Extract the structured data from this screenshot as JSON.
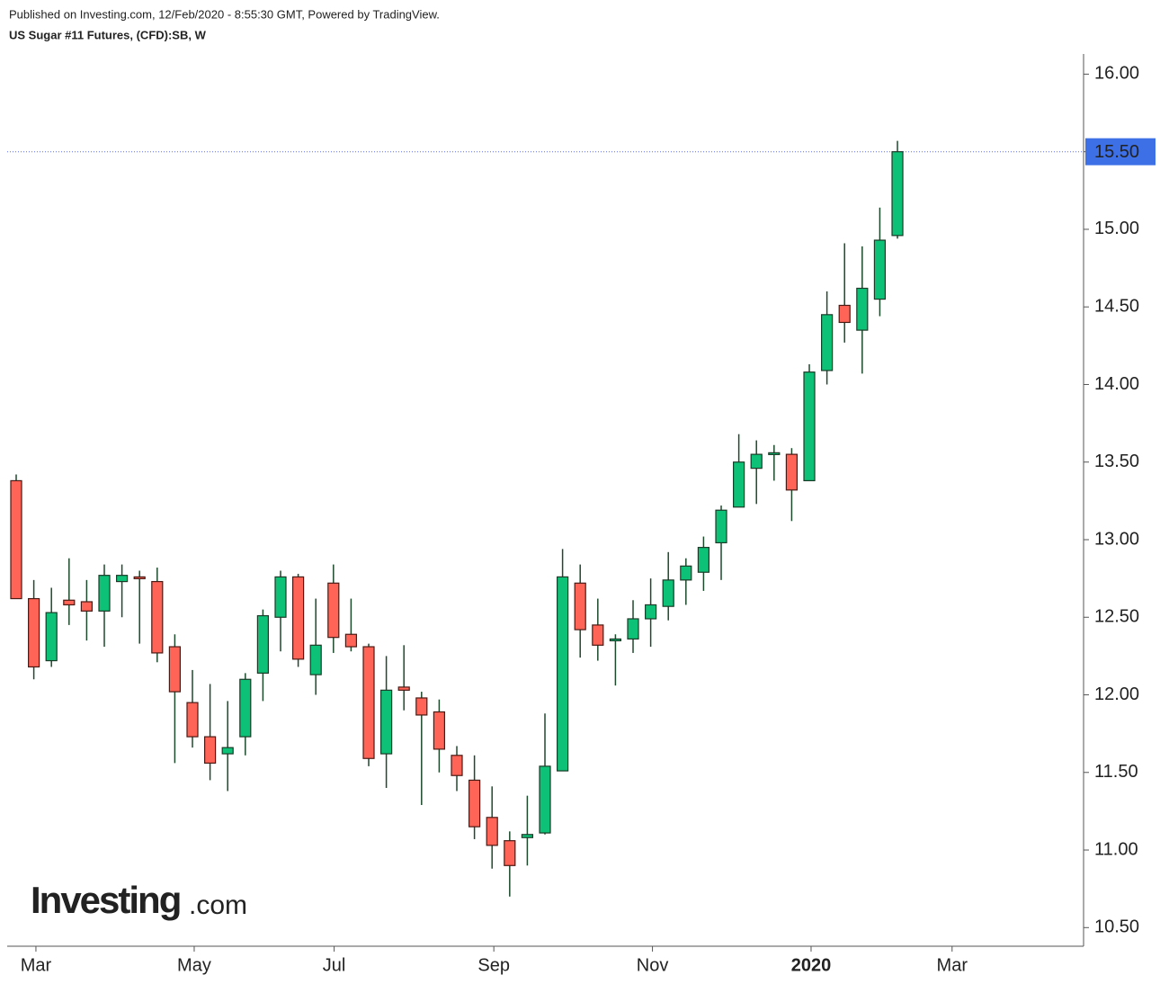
{
  "chart_data": {
    "type": "candlestick",
    "header": "Published on Investing.com, 12/Feb/2020 - 8:55:30 GMT, Powered by TradingView.",
    "title": "US Sugar #11 Futures, (CFD):SB, W",
    "watermark_brand": "Investing",
    "watermark_suffix": ".com",
    "up_color": "#0dc276",
    "down_color": "#ff6457",
    "open": [
      13.38,
      12.62,
      12.22,
      12.61,
      12.6,
      12.54,
      12.73,
      12.76,
      12.73,
      12.31,
      11.95,
      11.73,
      11.62,
      11.73,
      12.14,
      12.5,
      12.76,
      12.13,
      12.72,
      12.39,
      12.31,
      11.62,
      12.05,
      11.98,
      11.89,
      11.61,
      11.45,
      11.21,
      11.06,
      11.08,
      11.11,
      11.51,
      12.72,
      12.45,
      12.35,
      12.36,
      12.49,
      12.57,
      12.74,
      12.79,
      12.98,
      13.21,
      13.46,
      13.55,
      13.55,
      13.38,
      14.09,
      14.51,
      14.35,
      14.55,
      14.96
    ],
    "high": [
      13.42,
      12.74,
      12.69,
      12.88,
      12.74,
      12.84,
      12.84,
      12.8,
      12.82,
      12.39,
      12.16,
      12.07,
      11.96,
      12.14,
      12.55,
      12.8,
      12.78,
      12.62,
      12.84,
      12.62,
      12.33,
      12.25,
      12.32,
      12.02,
      11.97,
      11.67,
      11.61,
      11.41,
      11.12,
      11.35,
      11.88,
      12.94,
      12.84,
      12.62,
      12.39,
      12.61,
      12.75,
      12.92,
      12.88,
      13.02,
      13.22,
      13.68,
      13.64,
      13.61,
      13.59,
      14.13,
      14.6,
      14.91,
      14.89,
      15.14,
      15.57
    ],
    "low": [
      12.62,
      12.1,
      12.18,
      12.45,
      12.35,
      12.31,
      12.5,
      12.33,
      12.21,
      11.56,
      11.66,
      11.45,
      11.38,
      11.61,
      11.96,
      12.28,
      12.18,
      12.0,
      12.27,
      12.28,
      11.54,
      11.4,
      11.9,
      11.29,
      11.5,
      11.38,
      11.07,
      10.88,
      10.7,
      10.9,
      11.1,
      11.51,
      12.24,
      12.22,
      12.06,
      12.27,
      12.31,
      12.48,
      12.58,
      12.67,
      12.74,
      13.21,
      13.23,
      13.38,
      13.12,
      13.38,
      14.0,
      14.27,
      14.07,
      14.44,
      14.94
    ],
    "close": [
      12.62,
      12.18,
      12.53,
      12.58,
      12.54,
      12.77,
      12.77,
      12.75,
      12.27,
      12.02,
      11.73,
      11.56,
      11.66,
      12.1,
      12.51,
      12.76,
      12.23,
      12.32,
      12.37,
      12.31,
      11.59,
      12.03,
      12.03,
      11.87,
      11.65,
      11.48,
      11.15,
      11.03,
      10.9,
      11.1,
      11.54,
      12.76,
      12.42,
      12.32,
      12.36,
      12.49,
      12.58,
      12.74,
      12.83,
      12.95,
      13.19,
      13.5,
      13.55,
      13.56,
      13.32,
      14.08,
      14.45,
      14.4,
      14.62,
      14.93,
      15.5
    ],
    "xlim": [
      -0.51,
      60.56
    ],
    "xticks": [
      {
        "value": 1.12,
        "label": "Mar"
      },
      {
        "value": 10.1,
        "label": "May"
      },
      {
        "value": 18.04,
        "label": "Jul"
      },
      {
        "value": 27.1,
        "label": "Sep"
      },
      {
        "value": 36.1,
        "label": "Nov"
      },
      {
        "value": 45.1,
        "label": "2020"
      },
      {
        "value": 53.1,
        "label": "Mar"
      }
    ],
    "ylim": [
      10.38,
      16.13
    ],
    "yticks": [
      {
        "value": 10.5,
        "label": "10.50"
      },
      {
        "value": 11,
        "label": "11.00"
      },
      {
        "value": 11.5,
        "label": "11.50"
      },
      {
        "value": 12,
        "label": "12.00"
      },
      {
        "value": 12.5,
        "label": "12.50"
      },
      {
        "value": 13,
        "label": "13.00"
      },
      {
        "value": 13.5,
        "label": "13.50"
      },
      {
        "value": 14,
        "label": "14.00"
      },
      {
        "value": 14.5,
        "label": "14.50"
      },
      {
        "value": 15,
        "label": "15.00"
      },
      {
        "value": 15.5,
        "label": "15.50"
      },
      {
        "value": 16,
        "label": "16.00"
      }
    ],
    "last_price": {
      "value": 15.5,
      "label": "15.50"
    }
  }
}
